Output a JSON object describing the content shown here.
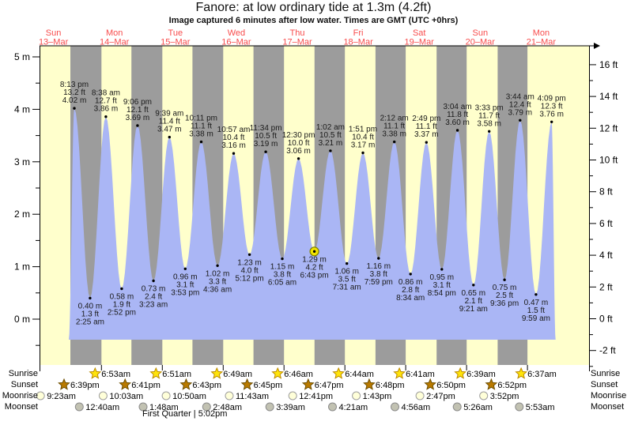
{
  "header": {
    "title": "Fanore: at low  ordinary tide at 1.3m (4.2ft)",
    "subtitle": "Image captured 6 minutes after low water. Times are GMT (UTC +0hrs)"
  },
  "days": [
    {
      "dow": "Sun",
      "date": "13–Mar"
    },
    {
      "dow": "Mon",
      "date": "14–Mar"
    },
    {
      "dow": "Tue",
      "date": "15–Mar"
    },
    {
      "dow": "Wed",
      "date": "16–Mar"
    },
    {
      "dow": "Thu",
      "date": "17–Mar"
    },
    {
      "dow": "Fri",
      "date": "18–Mar"
    },
    {
      "dow": "Sat",
      "date": "19–Mar"
    },
    {
      "dow": "Sun",
      "date": "20–Mar"
    },
    {
      "dow": "Mon",
      "date": "21–Mar"
    }
  ],
  "axes": {
    "left": [
      {
        "v": 5,
        "label": "5 m"
      },
      {
        "v": 4,
        "label": "4 m"
      },
      {
        "v": 3,
        "label": "3 m"
      },
      {
        "v": 2,
        "label": "2 m"
      },
      {
        "v": 1,
        "label": "1 m"
      },
      {
        "v": 0,
        "label": "0 m"
      }
    ],
    "right": [
      {
        "v": 16,
        "label": "16 ft"
      },
      {
        "v": 14,
        "label": "14 ft"
      },
      {
        "v": 12,
        "label": "12 ft"
      },
      {
        "v": 10,
        "label": "10 ft"
      },
      {
        "v": 8,
        "label": "8 ft"
      },
      {
        "v": 6,
        "label": "6 ft"
      },
      {
        "v": 4,
        "label": "4 ft"
      },
      {
        "v": 2,
        "label": "2 ft"
      },
      {
        "v": 0,
        "label": "0 ft"
      },
      {
        "v": -2,
        "label": "-2 ft"
      }
    ]
  },
  "chart_data": {
    "type": "area",
    "title": "Fanore: at low  ordinary tide at 1.3m (4.2ft)",
    "legend_position": "none",
    "ylim_m": [
      -0.5,
      5.2
    ],
    "extremes": [
      {
        "type": "high",
        "day": 0,
        "time": "8:13 pm",
        "m": 4.02,
        "ft": 13.2
      },
      {
        "type": "low",
        "day": 1,
        "time": "2:25 am",
        "m": 0.4,
        "ft": 1.3
      },
      {
        "type": "high",
        "day": 1,
        "time": "8:38 am",
        "m": 3.86,
        "ft": 12.7
      },
      {
        "type": "low",
        "day": 1,
        "time": "2:52 pm",
        "m": 0.58,
        "ft": 1.9
      },
      {
        "type": "high",
        "day": 1,
        "time": "9:06 pm",
        "m": 3.69,
        "ft": 12.1
      },
      {
        "type": "low",
        "day": 2,
        "time": "3:23 am",
        "m": 0.73,
        "ft": 2.4
      },
      {
        "type": "high",
        "day": 2,
        "time": "9:39 am",
        "m": 3.47,
        "ft": 11.4
      },
      {
        "type": "low",
        "day": 2,
        "time": "3:53 pm",
        "m": 0.96,
        "ft": 3.1
      },
      {
        "type": "high",
        "day": 2,
        "time": "10:11 pm",
        "m": 3.38,
        "ft": 11.1
      },
      {
        "type": "low",
        "day": 3,
        "time": "4:36 am",
        "m": 1.02,
        "ft": 3.3
      },
      {
        "type": "high",
        "day": 3,
        "time": "10:57 am",
        "m": 3.16,
        "ft": 10.4
      },
      {
        "type": "low",
        "day": 3,
        "time": "5:12 pm",
        "m": 1.23,
        "ft": 4.0
      },
      {
        "type": "high",
        "day": 3,
        "time": "11:34 pm",
        "m": 3.19,
        "ft": 10.5
      },
      {
        "type": "low",
        "day": 4,
        "time": "6:05 am",
        "m": 1.15,
        "ft": 3.8
      },
      {
        "type": "high",
        "day": 4,
        "time": "12:30 pm",
        "m": 3.06,
        "ft": 10.0
      },
      {
        "type": "low",
        "day": 4,
        "time": "6:43 pm",
        "m": 1.29,
        "ft": 4.2,
        "marked": true
      },
      {
        "type": "high",
        "day": 5,
        "time": "1:02 am",
        "m": 3.21,
        "ft": 10.5
      },
      {
        "type": "low",
        "day": 5,
        "time": "7:31 am",
        "m": 1.06,
        "ft": 3.5
      },
      {
        "type": "high",
        "day": 5,
        "time": "1:51 pm",
        "m": 3.17,
        "ft": 10.4
      },
      {
        "type": "low",
        "day": 5,
        "time": "7:59 pm",
        "m": 1.16,
        "ft": 3.8
      },
      {
        "type": "high",
        "day": 6,
        "time": "2:12 am",
        "m": 3.38,
        "ft": 11.1
      },
      {
        "type": "low",
        "day": 6,
        "time": "8:34 am",
        "m": 0.86,
        "ft": 2.8
      },
      {
        "type": "high",
        "day": 6,
        "time": "2:49 pm",
        "m": 3.37,
        "ft": 11.1
      },
      {
        "type": "low",
        "day": 6,
        "time": "8:54 pm",
        "m": 0.95,
        "ft": 3.1
      },
      {
        "type": "high",
        "day": 7,
        "time": "3:04 am",
        "m": 3.6,
        "ft": 11.8
      },
      {
        "type": "low",
        "day": 7,
        "time": "9:21 am",
        "m": 0.65,
        "ft": 2.1
      },
      {
        "type": "high",
        "day": 7,
        "time": "3:33 pm",
        "m": 3.58,
        "ft": 11.7
      },
      {
        "type": "low",
        "day": 7,
        "time": "9:36 pm",
        "m": 0.75,
        "ft": 2.5
      },
      {
        "type": "high",
        "day": 8,
        "time": "3:44 am",
        "m": 3.79,
        "ft": 12.4
      },
      {
        "type": "low",
        "day": 8,
        "time": "9:59 am",
        "m": 0.47,
        "ft": 1.5
      },
      {
        "type": "high",
        "day": 8,
        "time": "4:09 pm",
        "m": 3.76,
        "ft": 12.3
      }
    ]
  },
  "astronomy": {
    "rows": [
      {
        "label": "Sunrise",
        "icon": "sunrise-icon",
        "start_day": 1,
        "times": [
          "6:53am",
          "6:51am",
          "6:49am",
          "6:46am",
          "6:44am",
          "6:41am",
          "6:39am",
          "6:37am"
        ]
      },
      {
        "label": "Sunset",
        "icon": "sunset-icon",
        "start_day": 0,
        "times": [
          "6:39pm",
          "6:41pm",
          "6:43pm",
          "6:45pm",
          "6:47pm",
          "6:48pm",
          "6:50pm",
          "6:52pm"
        ]
      },
      {
        "label": "Moonrise",
        "icon": "moonrise-icon",
        "start_day": 0,
        "times": [
          "9:23am",
          "10:03am",
          "10:50am",
          "11:43am",
          "12:41pm",
          "1:43pm",
          "2:47pm",
          "3:52pm"
        ]
      },
      {
        "label": "Moonset",
        "icon": "moonset-icon",
        "start_day": 1,
        "times": [
          "12:40am",
          "1:48am",
          "2:48am",
          "3:39am",
          "4:21am",
          "4:56am",
          "5:26am",
          "5:53am"
        ]
      }
    ],
    "moon_phase": "First Quarter | 5:02pm"
  },
  "colors": {
    "day_band": "#ffffcc",
    "night_band": "#9c9c9c",
    "tide_fill": "#aab6f5",
    "date_red": "#f84c4c",
    "sunrise_star": "#ffe40a",
    "sunset_star": "#b97a00",
    "moonrise_fill": "#ffffd9",
    "moonset_fill": "#c2c2b2",
    "marker_yellow": "#f2e400"
  }
}
